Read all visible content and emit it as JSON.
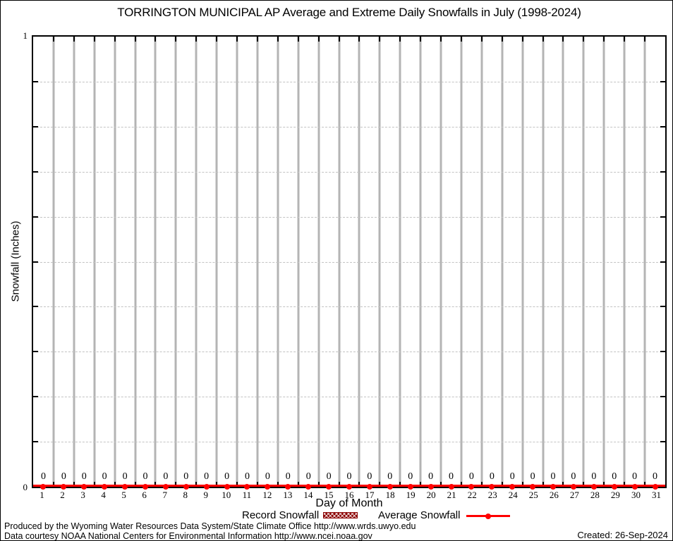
{
  "title": "TORRINGTON MUNICIPAL AP Average and Extreme Daily Snowfalls in July (1998-2024)",
  "legend": {
    "record_label": "Record Snowfall",
    "average_label": "Average Snowfall"
  },
  "footer": {
    "line1": "Produced by the Wyoming Water Resources Data System/State Climate Office http://www.wrds.uwyo.edu",
    "line2": "Data courtesy NOAA National Centers for Environmental Information http://www.ncei.noaa.gov",
    "created": "Created: 26-Sep-2024"
  },
  "colors": {
    "average_series": "#ff0000",
    "record_series": "#8b0000",
    "grid_vertical": "#b4b4b4",
    "grid_horizontal": "#c3c3c3",
    "axis": "#000000"
  },
  "chart_data": {
    "type": "line",
    "title": "TORRINGTON MUNICIPAL AP Average and Extreme Daily Snowfalls in July (1998-2024)",
    "xlabel": "Day of Month",
    "ylabel": "Snowfall (Inches)",
    "x": [
      1,
      2,
      3,
      4,
      5,
      6,
      7,
      8,
      9,
      10,
      11,
      12,
      13,
      14,
      15,
      16,
      17,
      18,
      19,
      20,
      21,
      22,
      23,
      24,
      25,
      26,
      27,
      28,
      29,
      30,
      31
    ],
    "series": [
      {
        "name": "Record Snowfall",
        "style": "bar",
        "color": "#8b0000",
        "values": [
          0,
          0,
          0,
          0,
          0,
          0,
          0,
          0,
          0,
          0,
          0,
          0,
          0,
          0,
          0,
          0,
          0,
          0,
          0,
          0,
          0,
          0,
          0,
          0,
          0,
          0,
          0,
          0,
          0,
          0,
          0
        ]
      },
      {
        "name": "Average Snowfall",
        "style": "line-points",
        "color": "#ff0000",
        "values": [
          0,
          0,
          0,
          0,
          0,
          0,
          0,
          0,
          0,
          0,
          0,
          0,
          0,
          0,
          0,
          0,
          0,
          0,
          0,
          0,
          0,
          0,
          0,
          0,
          0,
          0,
          0,
          0,
          0,
          0,
          0
        ]
      }
    ],
    "point_labels": [
      "0",
      "0",
      "0",
      "0",
      "0",
      "0",
      "0",
      "0",
      "0",
      "0",
      "0",
      "0",
      "0",
      "0",
      "0",
      "0",
      "0",
      "0",
      "0",
      "0",
      "0",
      "0",
      "0",
      "0",
      "0",
      "0",
      "0",
      "0",
      "0",
      "0",
      "0"
    ],
    "xlim": [
      0.5,
      31.5
    ],
    "ylim": [
      0,
      1
    ],
    "y_tick_labels": [
      "1",
      "0"
    ],
    "y_minor_step": 0.1,
    "grid": {
      "vertical": "solid gray lines at day boundaries",
      "horizontal": "dashed light-gray lines every 0.1"
    },
    "legend_position": "below-x-axis"
  }
}
